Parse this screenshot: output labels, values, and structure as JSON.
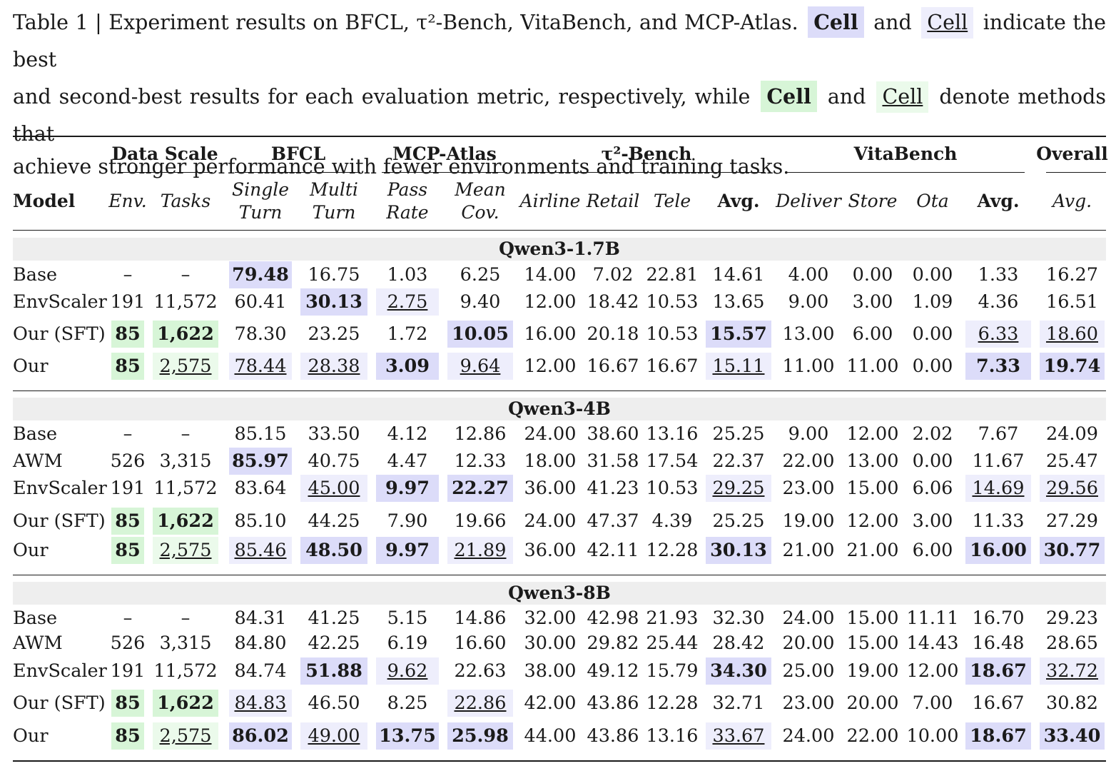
{
  "caption": {
    "part1": "Table 1 | Experiment results on BFCL, τ²-Bench, VitaBench, and MCP-Atlas.",
    "cell_label": "Cell",
    "and": "and",
    "part2": "indicate the best",
    "line2a": "and second-best results for each evaluation metric, respectively, while",
    "line2b": "denote methods that",
    "line3": "achieve stronger performance with fewer environments and training tasks."
  },
  "header": {
    "groups": [
      "Data Scale",
      "BFCL",
      "MCP-Atlas",
      "τ²-Bench",
      "VitaBench",
      "Overall"
    ],
    "model": "Model",
    "columns": [
      [
        "Env."
      ],
      [
        "Tasks"
      ],
      [
        "Single",
        "Turn"
      ],
      [
        "Multi",
        "Turn"
      ],
      [
        "Pass",
        "Rate"
      ],
      [
        "Mean",
        "Cov."
      ],
      [
        "Airline"
      ],
      [
        "Retail"
      ],
      [
        "Tele"
      ],
      [
        "Avg."
      ],
      [
        "Deliver"
      ],
      [
        "Store"
      ],
      [
        "Ota"
      ],
      [
        "Avg."
      ],
      [
        "Avg."
      ]
    ]
  },
  "sections": [
    {
      "title": "Qwen3-1.7B",
      "rows": [
        {
          "model": "Base",
          "cells": [
            [
              "–",
              ""
            ],
            [
              "–",
              ""
            ],
            [
              "79.48",
              "best"
            ],
            [
              "16.75",
              ""
            ],
            [
              "1.03",
              ""
            ],
            [
              "6.25",
              ""
            ],
            [
              "14.00",
              ""
            ],
            [
              "7.02",
              ""
            ],
            [
              "22.81",
              ""
            ],
            [
              "14.61",
              ""
            ],
            [
              "4.00",
              ""
            ],
            [
              "0.00",
              ""
            ],
            [
              "0.00",
              ""
            ],
            [
              "1.33",
              ""
            ],
            [
              "16.27",
              ""
            ]
          ]
        },
        {
          "model": "EnvScaler",
          "cells": [
            [
              "191",
              ""
            ],
            [
              "11,572",
              ""
            ],
            [
              "60.41",
              ""
            ],
            [
              "30.13",
              "best"
            ],
            [
              "2.75",
              "second"
            ],
            [
              "9.40",
              ""
            ],
            [
              "12.00",
              ""
            ],
            [
              "18.42",
              ""
            ],
            [
              "10.53",
              ""
            ],
            [
              "13.65",
              ""
            ],
            [
              "9.00",
              ""
            ],
            [
              "3.00",
              ""
            ],
            [
              "1.09",
              ""
            ],
            [
              "4.36",
              ""
            ],
            [
              "16.51",
              ""
            ]
          ]
        },
        {
          "model": "Our (SFT)",
          "cells": [
            [
              "85",
              "gbest"
            ],
            [
              "1,622",
              "gbest"
            ],
            [
              "78.30",
              ""
            ],
            [
              "23.25",
              ""
            ],
            [
              "1.72",
              ""
            ],
            [
              "10.05",
              "best"
            ],
            [
              "16.00",
              ""
            ],
            [
              "20.18",
              ""
            ],
            [
              "10.53",
              ""
            ],
            [
              "15.57",
              "best"
            ],
            [
              "13.00",
              ""
            ],
            [
              "6.00",
              ""
            ],
            [
              "0.00",
              ""
            ],
            [
              "6.33",
              "second"
            ],
            [
              "18.60",
              "second"
            ]
          ]
        },
        {
          "model": "Our",
          "cells": [
            [
              "85",
              "gbest"
            ],
            [
              "2,575",
              "gsecond"
            ],
            [
              "78.44",
              "second"
            ],
            [
              "28.38",
              "second"
            ],
            [
              "3.09",
              "best"
            ],
            [
              "9.64",
              "second"
            ],
            [
              "12.00",
              ""
            ],
            [
              "16.67",
              ""
            ],
            [
              "16.67",
              ""
            ],
            [
              "15.11",
              "second"
            ],
            [
              "11.00",
              ""
            ],
            [
              "11.00",
              ""
            ],
            [
              "0.00",
              ""
            ],
            [
              "7.33",
              "best"
            ],
            [
              "19.74",
              "best"
            ]
          ]
        }
      ]
    },
    {
      "title": "Qwen3-4B",
      "rows": [
        {
          "model": "Base",
          "cells": [
            [
              "–",
              ""
            ],
            [
              "–",
              ""
            ],
            [
              "85.15",
              ""
            ],
            [
              "33.50",
              ""
            ],
            [
              "4.12",
              ""
            ],
            [
              "12.86",
              ""
            ],
            [
              "24.00",
              ""
            ],
            [
              "38.60",
              ""
            ],
            [
              "13.16",
              ""
            ],
            [
              "25.25",
              ""
            ],
            [
              "9.00",
              ""
            ],
            [
              "12.00",
              ""
            ],
            [
              "2.02",
              ""
            ],
            [
              "7.67",
              ""
            ],
            [
              "24.09",
              ""
            ]
          ]
        },
        {
          "model": "AWM",
          "cells": [
            [
              "526",
              ""
            ],
            [
              "3,315",
              ""
            ],
            [
              "85.97",
              "best"
            ],
            [
              "40.75",
              ""
            ],
            [
              "4.47",
              ""
            ],
            [
              "12.33",
              ""
            ],
            [
              "18.00",
              ""
            ],
            [
              "31.58",
              ""
            ],
            [
              "17.54",
              ""
            ],
            [
              "22.37",
              ""
            ],
            [
              "22.00",
              ""
            ],
            [
              "13.00",
              ""
            ],
            [
              "0.00",
              ""
            ],
            [
              "11.67",
              ""
            ],
            [
              "25.47",
              ""
            ]
          ]
        },
        {
          "model": "EnvScaler",
          "cells": [
            [
              "191",
              ""
            ],
            [
              "11,572",
              ""
            ],
            [
              "83.64",
              ""
            ],
            [
              "45.00",
              "second"
            ],
            [
              "9.97",
              "best"
            ],
            [
              "22.27",
              "best"
            ],
            [
              "36.00",
              ""
            ],
            [
              "41.23",
              ""
            ],
            [
              "10.53",
              ""
            ],
            [
              "29.25",
              "second"
            ],
            [
              "23.00",
              ""
            ],
            [
              "15.00",
              ""
            ],
            [
              "6.06",
              ""
            ],
            [
              "14.69",
              "second"
            ],
            [
              "29.56",
              "second"
            ]
          ]
        },
        {
          "model": "Our (SFT)",
          "cells": [
            [
              "85",
              "gbest"
            ],
            [
              "1,622",
              "gbest"
            ],
            [
              "85.10",
              ""
            ],
            [
              "44.25",
              ""
            ],
            [
              "7.90",
              ""
            ],
            [
              "19.66",
              ""
            ],
            [
              "24.00",
              ""
            ],
            [
              "47.37",
              ""
            ],
            [
              "4.39",
              ""
            ],
            [
              "25.25",
              ""
            ],
            [
              "19.00",
              ""
            ],
            [
              "12.00",
              ""
            ],
            [
              "3.00",
              ""
            ],
            [
              "11.33",
              ""
            ],
            [
              "27.29",
              ""
            ]
          ]
        },
        {
          "model": "Our",
          "cells": [
            [
              "85",
              "gbest"
            ],
            [
              "2,575",
              "gsecond"
            ],
            [
              "85.46",
              "second"
            ],
            [
              "48.50",
              "best"
            ],
            [
              "9.97",
              "best"
            ],
            [
              "21.89",
              "second"
            ],
            [
              "36.00",
              ""
            ],
            [
              "42.11",
              ""
            ],
            [
              "12.28",
              ""
            ],
            [
              "30.13",
              "best"
            ],
            [
              "21.00",
              ""
            ],
            [
              "21.00",
              ""
            ],
            [
              "6.00",
              ""
            ],
            [
              "16.00",
              "best"
            ],
            [
              "30.77",
              "best"
            ]
          ]
        }
      ]
    },
    {
      "title": "Qwen3-8B",
      "rows": [
        {
          "model": "Base",
          "cells": [
            [
              "–",
              ""
            ],
            [
              "–",
              ""
            ],
            [
              "84.31",
              ""
            ],
            [
              "41.25",
              ""
            ],
            [
              "5.15",
              ""
            ],
            [
              "14.86",
              ""
            ],
            [
              "32.00",
              ""
            ],
            [
              "42.98",
              ""
            ],
            [
              "21.93",
              ""
            ],
            [
              "32.30",
              ""
            ],
            [
              "24.00",
              ""
            ],
            [
              "15.00",
              ""
            ],
            [
              "11.11",
              ""
            ],
            [
              "16.70",
              ""
            ],
            [
              "29.23",
              ""
            ]
          ]
        },
        {
          "model": "AWM",
          "cells": [
            [
              "526",
              ""
            ],
            [
              "3,315",
              ""
            ],
            [
              "84.80",
              ""
            ],
            [
              "42.25",
              ""
            ],
            [
              "6.19",
              ""
            ],
            [
              "16.60",
              ""
            ],
            [
              "30.00",
              ""
            ],
            [
              "29.82",
              ""
            ],
            [
              "25.44",
              ""
            ],
            [
              "28.42",
              ""
            ],
            [
              "20.00",
              ""
            ],
            [
              "15.00",
              ""
            ],
            [
              "14.43",
              ""
            ],
            [
              "16.48",
              ""
            ],
            [
              "28.65",
              ""
            ]
          ]
        },
        {
          "model": "EnvScaler",
          "cells": [
            [
              "191",
              ""
            ],
            [
              "11,572",
              ""
            ],
            [
              "84.74",
              ""
            ],
            [
              "51.88",
              "best"
            ],
            [
              "9.62",
              "second"
            ],
            [
              "22.63",
              ""
            ],
            [
              "38.00",
              ""
            ],
            [
              "49.12",
              ""
            ],
            [
              "15.79",
              ""
            ],
            [
              "34.30",
              "best"
            ],
            [
              "25.00",
              ""
            ],
            [
              "19.00",
              ""
            ],
            [
              "12.00",
              ""
            ],
            [
              "18.67",
              "best"
            ],
            [
              "32.72",
              "second"
            ]
          ]
        },
        {
          "model": "Our (SFT)",
          "cells": [
            [
              "85",
              "gbest"
            ],
            [
              "1,622",
              "gbest"
            ],
            [
              "84.83",
              "second"
            ],
            [
              "46.50",
              ""
            ],
            [
              "8.25",
              ""
            ],
            [
              "22.86",
              "second"
            ],
            [
              "42.00",
              ""
            ],
            [
              "43.86",
              ""
            ],
            [
              "12.28",
              ""
            ],
            [
              "32.71",
              ""
            ],
            [
              "23.00",
              ""
            ],
            [
              "20.00",
              ""
            ],
            [
              "7.00",
              ""
            ],
            [
              "16.67",
              ""
            ],
            [
              "30.82",
              ""
            ]
          ]
        },
        {
          "model": "Our",
          "cells": [
            [
              "85",
              "gbest"
            ],
            [
              "2,575",
              "gsecond"
            ],
            [
              "86.02",
              "best"
            ],
            [
              "49.00",
              "second"
            ],
            [
              "13.75",
              "best"
            ],
            [
              "25.98",
              "best"
            ],
            [
              "44.00",
              ""
            ],
            [
              "43.86",
              ""
            ],
            [
              "13.16",
              ""
            ],
            [
              "33.67",
              "second"
            ],
            [
              "24.00",
              ""
            ],
            [
              "22.00",
              ""
            ],
            [
              "10.00",
              ""
            ],
            [
              "18.67",
              "best"
            ],
            [
              "33.40",
              "best"
            ]
          ]
        }
      ]
    }
  ]
}
